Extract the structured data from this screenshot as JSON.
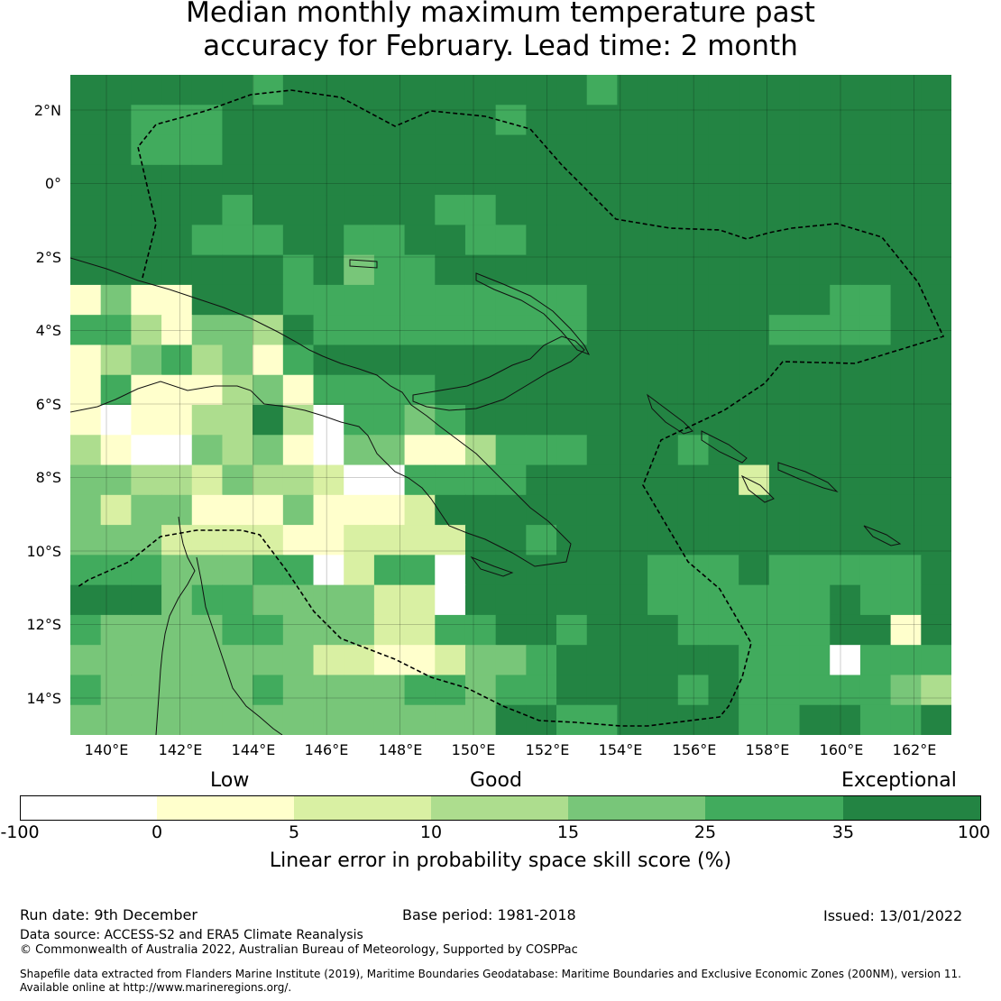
{
  "title_line1": "Median monthly maximum temperature past",
  "title_line2": "accuracy for February. Lead time: 2 month",
  "map": {
    "lat_labels": [
      "2°N",
      "0°",
      "2°S",
      "4°S",
      "6°S",
      "8°S",
      "10°S",
      "12°S",
      "14°S"
    ],
    "lon_labels": [
      "140°E",
      "142°E",
      "144°E",
      "146°E",
      "148°E",
      "150°E",
      "152°E",
      "154°E",
      "156°E",
      "158°E",
      "160°E",
      "162°E"
    ],
    "colors": {
      "neg": "#ffffff",
      "c0": "#ffffcc",
      "c5": "#d9f0a3",
      "c10": "#addd8e",
      "c15": "#78c679",
      "c25": "#41ab5d",
      "c35": "#238443"
    }
  },
  "colorbar": {
    "categories": [
      "Low",
      "Good",
      "Exceptional"
    ],
    "ticks": [
      "-100",
      "0",
      "5",
      "10",
      "15",
      "25",
      "35",
      "100"
    ],
    "colors": [
      "#ffffff",
      "#ffffcc",
      "#d9f0a3",
      "#addd8e",
      "#78c679",
      "#41ab5d",
      "#238443"
    ],
    "title": "Linear error in probability space skill score (%)"
  },
  "footer": {
    "run_date": "Run date: 9th December",
    "base_period": "Base period: 1981-2018",
    "issued": "Issued: 13/01/2022",
    "data_source": "Data source: ACCESS-S2 and ERA5 Climate Reanalysis",
    "copyright": "© Commonwealth of Australia 2022, Australian Bureau of Meteorology, Supported by COSPPac",
    "shapefile_line1": "Shapefile data extracted from Flanders Marine Institute (2019), Maritime Boundaries Geodatabase: Maritime Boundaries and Exclusive Economic Zones (200NM), version 11.",
    "shapefile_line2": "Available online at http://www.marineregions.org/."
  }
}
